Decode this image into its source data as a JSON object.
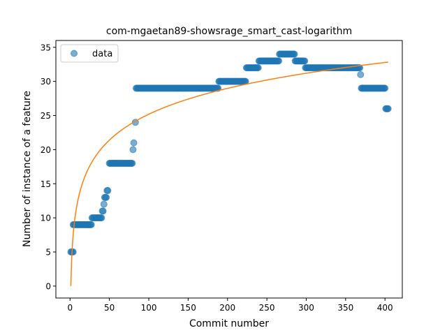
{
  "chart_data": {
    "type": "scatter",
    "title": "com-mgaetan89-showsrage_smart_cast-logarithm",
    "xlabel": "Commit number",
    "ylabel": "Number of instance of a feature",
    "xlim": [
      -18,
      422
    ],
    "ylim": [
      -1.75,
      36.0
    ],
    "xticks": [
      0,
      50,
      100,
      150,
      200,
      250,
      300,
      350,
      400
    ],
    "yticks": [
      0,
      5,
      10,
      15,
      20,
      25,
      30,
      35
    ],
    "grid": false,
    "legend": {
      "placement": "upper-left",
      "entries": [
        "data"
      ]
    },
    "colors": {
      "data": "#1f77b4",
      "fit": "#ff7f0e"
    },
    "series": [
      {
        "name": "data",
        "kind": "scatter",
        "segments": [
          {
            "x_start": 1,
            "x_end": 4,
            "y": 5
          },
          {
            "x_start": 4,
            "x_end": 27,
            "y": 9
          },
          {
            "x_start": 28,
            "x_end": 40,
            "y": 10
          },
          {
            "x_start": 41,
            "x_end": 42,
            "y": 11
          },
          {
            "x_start": 43,
            "x_end": 43,
            "y": 12
          },
          {
            "x_start": 44,
            "x_end": 46,
            "y": 13
          },
          {
            "x_start": 47,
            "x_end": 48,
            "y": 14
          },
          {
            "x_start": 50,
            "x_end": 79,
            "y": 18
          },
          {
            "x_start": 80,
            "x_end": 80,
            "y": 20
          },
          {
            "x_start": 81,
            "x_end": 81,
            "y": 21
          },
          {
            "x_start": 83,
            "x_end": 83,
            "y": 24
          },
          {
            "x_start": 84,
            "x_end": 188,
            "y": 29
          },
          {
            "x_start": 189,
            "x_end": 223,
            "y": 30
          },
          {
            "x_start": 224,
            "x_end": 239,
            "y": 32
          },
          {
            "x_start": 240,
            "x_end": 265,
            "y": 33
          },
          {
            "x_start": 266,
            "x_end": 285,
            "y": 34
          },
          {
            "x_start": 286,
            "x_end": 298,
            "y": 33
          },
          {
            "x_start": 299,
            "x_end": 368,
            "y": 32
          },
          {
            "x_start": 369,
            "x_end": 369,
            "y": 31
          },
          {
            "x_start": 370,
            "x_end": 400,
            "y": 29
          },
          {
            "x_start": 401,
            "x_end": 404,
            "y": 26
          }
        ]
      },
      {
        "name": "",
        "kind": "line",
        "function": "a + b*ln(x)",
        "a": 0.0,
        "b": 5.47,
        "x_range": [
          1,
          404
        ]
      }
    ]
  }
}
